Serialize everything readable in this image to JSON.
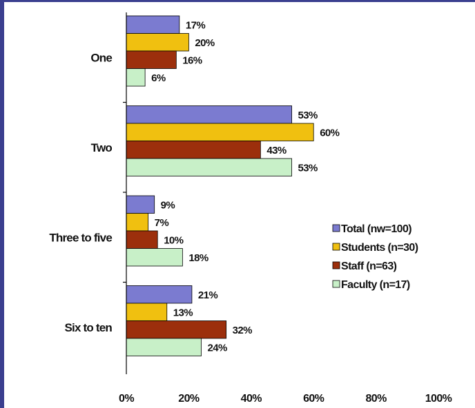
{
  "chart_data": {
    "type": "bar",
    "orientation": "horizontal",
    "categories": [
      "One",
      "Two",
      "Three to five",
      "Six to ten"
    ],
    "series": [
      {
        "name": "Total (nw=100)",
        "color": "#7b7bd0",
        "values": [
          17,
          53,
          9,
          21
        ],
        "labels": [
          "17%",
          "53%",
          "9%",
          "21%"
        ]
      },
      {
        "name": "Students (n=30)",
        "color": "#f0c010",
        "values": [
          20,
          60,
          7,
          13
        ],
        "labels": [
          "20%",
          "60%",
          "7%",
          "13%"
        ]
      },
      {
        "name": "Staff (n=63)",
        "color": "#9c2f0c",
        "values": [
          16,
          43,
          10,
          32
        ],
        "labels": [
          "16%",
          "43%",
          "10%",
          "32%"
        ]
      },
      {
        "name": "Faculty (n=17)",
        "color": "#c8f0c8",
        "values": [
          6,
          53,
          18,
          24
        ],
        "labels": [
          "6%",
          "53%",
          "18%",
          "24%"
        ]
      }
    ],
    "xlim": [
      0,
      100
    ],
    "xticks": [
      0,
      20,
      40,
      60,
      80,
      100
    ],
    "xtick_labels": [
      "0%",
      "20%",
      "40%",
      "60%",
      "80%",
      "100%"
    ],
    "title": "",
    "xlabel": "",
    "ylabel": "",
    "grid": false,
    "legend_position": "right"
  }
}
